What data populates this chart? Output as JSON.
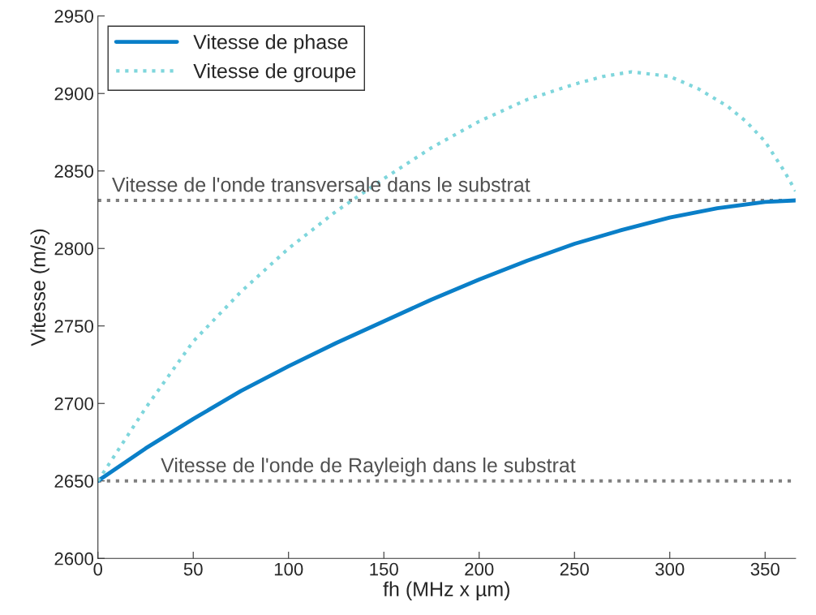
{
  "chart_data": {
    "type": "line",
    "xlabel": "fh (MHz x µm)",
    "ylabel": "Vitesse (m/s)",
    "xlim": [
      0,
      366
    ],
    "ylim": [
      2600,
      2950
    ],
    "xticks": [
      0,
      50,
      100,
      150,
      200,
      250,
      300,
      350
    ],
    "yticks": [
      2600,
      2650,
      2700,
      2750,
      2800,
      2850,
      2900,
      2950
    ],
    "grid": false,
    "legend": "top left",
    "marker": "none",
    "series": [
      {
        "name": "Vitesse de phase",
        "color": "#0a7fc8",
        "line_style": "solid",
        "x": [
          0,
          25,
          50,
          75,
          100,
          125,
          150,
          175,
          200,
          225,
          250,
          275,
          300,
          325,
          350,
          366
        ],
        "values": [
          2650,
          2671,
          2690,
          2708,
          2724,
          2739,
          2753,
          2767,
          2780,
          2792,
          2803,
          2812,
          2820,
          2826,
          2830,
          2831
        ]
      },
      {
        "name": "Vitesse de groupe",
        "color": "#7fd6dc",
        "line_style": "dotted",
        "x": [
          0,
          25,
          50,
          75,
          100,
          125,
          150,
          175,
          200,
          225,
          250,
          265,
          280,
          300,
          315,
          330,
          340,
          350,
          360,
          366
        ],
        "values": [
          2650,
          2697,
          2740,
          2772,
          2800,
          2824,
          2845,
          2865,
          2882,
          2896,
          2906,
          2911,
          2914,
          2911,
          2903,
          2892,
          2882,
          2869,
          2850,
          2837
        ]
      }
    ],
    "ref_lines": [
      {
        "axis": "y",
        "value": 2831,
        "label": "Vitesse de l'onde transversale dans le substrat",
        "color": "#808080",
        "line_style": "dotted"
      },
      {
        "axis": "y",
        "value": 2650,
        "label": "Vitesse de l'onde de Rayleigh dans le substrat",
        "color": "#808080",
        "line_style": "dotted"
      }
    ]
  }
}
